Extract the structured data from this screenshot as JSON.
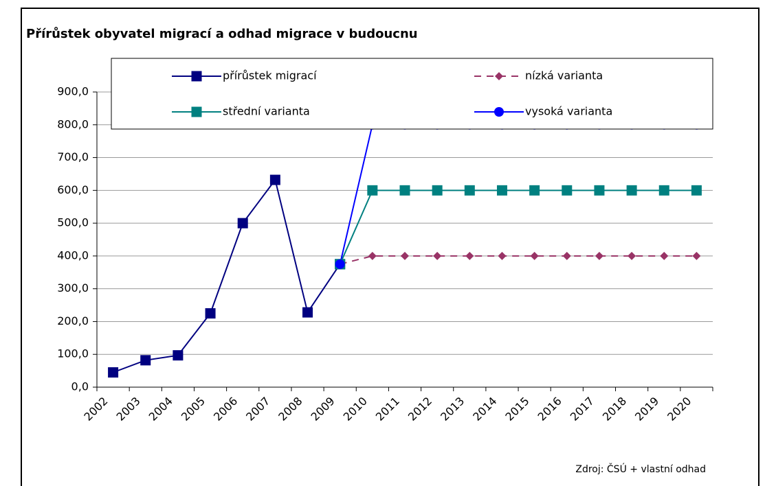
{
  "chart_data": {
    "type": "line",
    "title": "Přírůstek obyvatel migrací a odhad migrace v budoucnu",
    "source": "Zdroj: ČSÚ + vlastní odhad",
    "categories": [
      "2002",
      "2003",
      "2004",
      "2005",
      "2006",
      "2007",
      "2008",
      "2009",
      "2010",
      "2011",
      "2012",
      "2013",
      "2014",
      "2015",
      "2016",
      "2017",
      "2018",
      "2019",
      "2020"
    ],
    "series": [
      {
        "name": "přírůstek migrací",
        "color": "#000080",
        "marker": "square",
        "dashed": false,
        "values": [
          45,
          82,
          97,
          225,
          500,
          632,
          228,
          375,
          null,
          null,
          null,
          null,
          null,
          null,
          null,
          null,
          null,
          null,
          null
        ]
      },
      {
        "name": "nízká varianta",
        "color": "#993366",
        "marker": "diamond",
        "dashed": true,
        "values": [
          null,
          null,
          null,
          null,
          null,
          null,
          null,
          375,
          400,
          400,
          400,
          400,
          400,
          400,
          400,
          400,
          400,
          400,
          400
        ]
      },
      {
        "name": "střední varianta",
        "color": "#008080",
        "marker": "square",
        "dashed": false,
        "values": [
          null,
          null,
          null,
          null,
          null,
          null,
          null,
          375,
          600,
          600,
          600,
          600,
          600,
          600,
          600,
          600,
          600,
          600,
          600
        ]
      },
      {
        "name": "vysoká varianta",
        "color": "#0000ff",
        "marker": "circle",
        "dashed": false,
        "values": [
          null,
          null,
          null,
          null,
          null,
          null,
          null,
          375,
          800,
          800,
          800,
          800,
          800,
          800,
          800,
          800,
          800,
          800,
          800
        ]
      }
    ],
    "ylim": [
      0,
      900
    ],
    "yticks": [
      {
        "value": 0,
        "label": "0,0"
      },
      {
        "value": 100,
        "label": "100,0"
      },
      {
        "value": 200,
        "label": "200,0"
      },
      {
        "value": 300,
        "label": "300,0"
      },
      {
        "value": 400,
        "label": "400,0"
      },
      {
        "value": 500,
        "label": "500,0"
      },
      {
        "value": 600,
        "label": "600,0"
      },
      {
        "value": 700,
        "label": "700,0"
      },
      {
        "value": 800,
        "label": "800,0"
      },
      {
        "value": 900,
        "label": "900,0"
      }
    ],
    "grid": true
  }
}
